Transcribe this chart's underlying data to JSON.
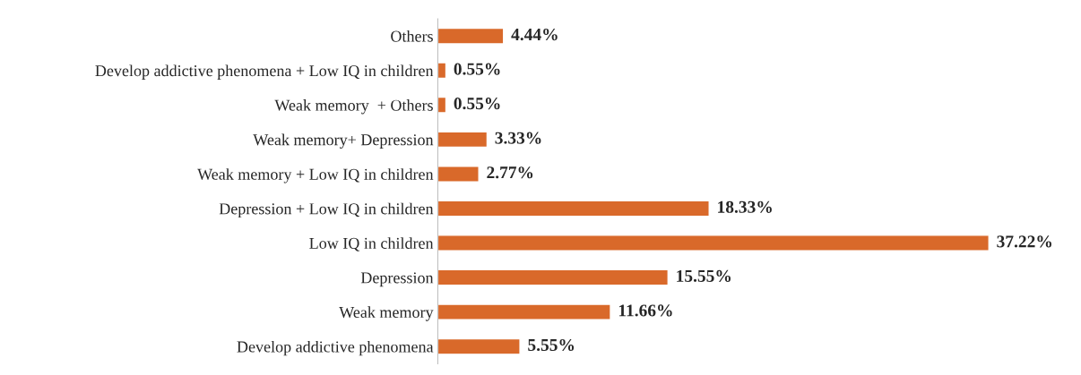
{
  "chart_data": {
    "type": "bar",
    "orientation": "horizontal",
    "categories": [
      "Others",
      "Develop addictive phenomena + Low IQ in children",
      "Weak memory  + Others",
      "Weak memory+ Depression",
      "Weak memory + Low IQ in children",
      "Depression + Low IQ in children",
      "Low IQ in children",
      "Depression",
      "Weak memory",
      "Develop addictive phenomena"
    ],
    "values": [
      4.44,
      0.55,
      0.55,
      3.33,
      2.77,
      18.33,
      37.22,
      15.55,
      11.66,
      5.55
    ],
    "value_labels": [
      "4.44%",
      "0.55%",
      "0.55%",
      "3.33%",
      "2.77%",
      "18.33%",
      "37.22%",
      "15.55%",
      "11.66%",
      "5.55%"
    ],
    "color": "#d9692a",
    "grid": false
  }
}
